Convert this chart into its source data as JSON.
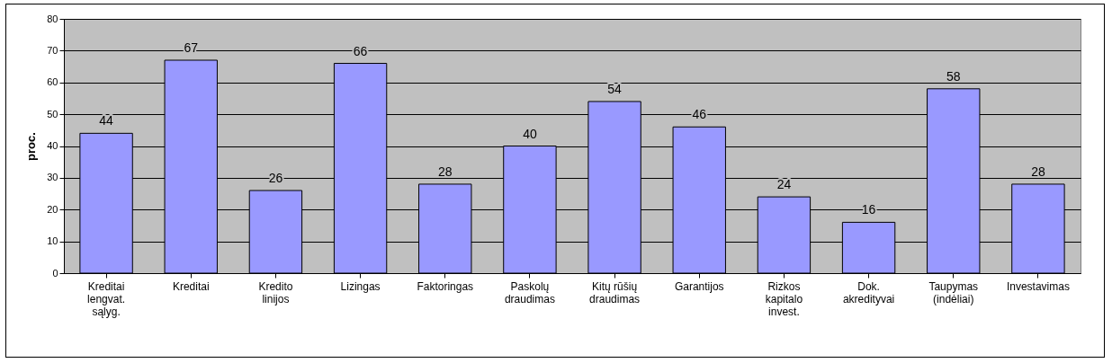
{
  "chart_data": {
    "type": "bar",
    "ylabel": "proc.",
    "categories": [
      "Kreditai lengvat. sąlyg.",
      "Kreditai",
      "Kredito linijos",
      "Lizingas",
      "Faktoringas",
      "Paskolų draudimas",
      "Kitų rūšių draudimas",
      "Garantijos",
      "Rizkos kapitalo invest.",
      "Dok. akredityvai",
      "Taupymas (indėliai)",
      "Investavimas"
    ],
    "values": [
      44,
      67,
      26,
      66,
      28,
      40,
      54,
      46,
      24,
      16,
      58,
      28
    ],
    "color": "#9999ff",
    "ylim": [
      0,
      80
    ],
    "yticks": [
      0,
      10,
      20,
      30,
      40,
      50,
      60,
      70,
      80
    ],
    "grid": "y",
    "data_labels": true
  }
}
